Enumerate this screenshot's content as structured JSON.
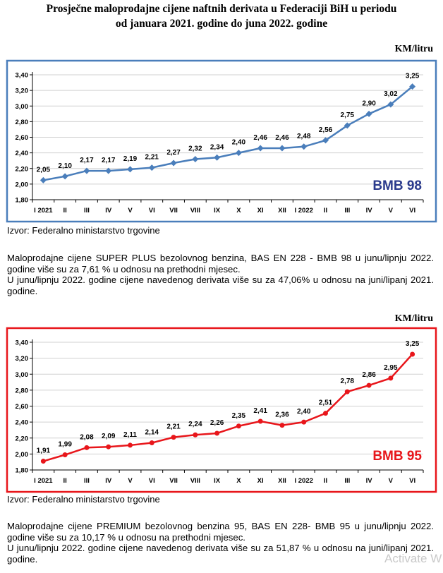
{
  "title_line1": "Prosječne maloprodajne cijene naftnih derivata u Federaciji BiH u periodu",
  "title_line2": "od januara 2021. godine do juna 2022. godine",
  "chart_data": [
    {
      "type": "line",
      "unit_label": "KM/litru",
      "series_label": "BMB 98",
      "color": "#4a7ebb",
      "frame_color": "#4a7ebb",
      "label_color": "#2a3a8c",
      "categories": [
        "I 2021",
        "II",
        "III",
        "IV",
        "V",
        "VI",
        "VII",
        "VIII",
        "IX",
        "X",
        "XI",
        "XII",
        "I 2022",
        "II",
        "III",
        "IV",
        "V",
        "VI"
      ],
      "values": [
        2.05,
        2.1,
        2.17,
        2.17,
        2.19,
        2.21,
        2.27,
        2.32,
        2.34,
        2.4,
        2.46,
        2.46,
        2.48,
        2.56,
        2.75,
        2.9,
        3.02,
        3.25
      ],
      "value_labels": [
        "2,05",
        "2,10",
        "2,17",
        "2,17",
        "2,19",
        "2,21",
        "2,27",
        "2,32",
        "2,34",
        "2,40",
        "2,46",
        "2,46",
        "2,48",
        "2,56",
        "2,75",
        "2,90",
        "3,02",
        "3,25"
      ],
      "yticks": [
        "1,80",
        "2,00",
        "2,20",
        "2,40",
        "2,60",
        "2,80",
        "3,00",
        "3,20",
        "3,40"
      ],
      "ylim": [
        1.8,
        3.4
      ],
      "marker": "diamond"
    },
    {
      "type": "line",
      "unit_label": "KM/litru",
      "series_label": "BMB 95",
      "color": "#e8161b",
      "frame_color": "#e8161b",
      "label_color": "#e8161b",
      "categories": [
        "I 2021",
        "II",
        "III",
        "IV",
        "V",
        "VI",
        "VII",
        "VIII",
        "IX",
        "X",
        "XI",
        "XII",
        "I 2022",
        "II",
        "III",
        "IV",
        "V",
        "VI"
      ],
      "values": [
        1.91,
        1.99,
        2.08,
        2.09,
        2.11,
        2.14,
        2.21,
        2.24,
        2.26,
        2.35,
        2.41,
        2.36,
        2.4,
        2.51,
        2.78,
        2.86,
        2.95,
        3.25
      ],
      "value_labels": [
        "1,91",
        "1,99",
        "2,08",
        "2,09",
        "2,11",
        "2,14",
        "2,21",
        "2,24",
        "2,26",
        "2,35",
        "2,41",
        "2,36",
        "2,40",
        "2,51",
        "2,78",
        "2,86",
        "2,95",
        "3,25"
      ],
      "yticks": [
        "1,80",
        "2,00",
        "2,20",
        "2,40",
        "2,60",
        "2,80",
        "3,00",
        "3,20",
        "3,40"
      ],
      "ylim": [
        1.8,
        3.4
      ],
      "marker": "circle"
    }
  ],
  "source_1": "Izvor: Federalno ministarstvo trgovine",
  "para_1_line1": "Maloprodajne cijene SUPER PLUS bezolovnog benzina, BAS EN 228 - BMB 98 u junu/lipnju 2022. godine više su za 7,61 % u odnosu na prethodni mjesec.",
  "para_1_line2": "U junu/lipnju 2022. godine cijene navedenog derivata više su za 47,06% u odnosu na juni/lipanj 2021. godine.",
  "source_2": "Izvor: Federalno ministarstvo trgovine",
  "para_2_line1": "Maloprodajne cijene PREMIUM bezolovnog benzina 95, BAS EN 228- BMB 95 u junu/lipnju 2022. godine više su za 10,17 % u odnosu na prethodni mjesec.",
  "para_2_line2": "U junu/lipnju 2022. godine cijene navedenog derivata više su za 51,87 % u odnosu na juni/lipanj 2021. godine.",
  "watermark": "Activate W"
}
